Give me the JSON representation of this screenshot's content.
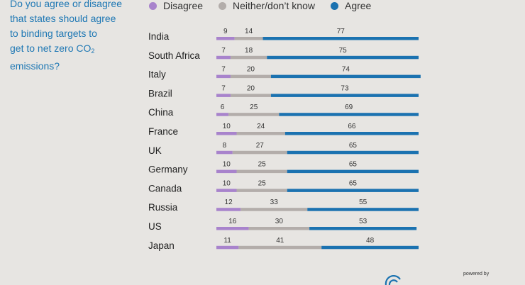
{
  "question": {
    "lines": [
      "Do you agree or disagree",
      "that states should agree",
      "to binding targets to"
    ],
    "line4_text": "get to net zero CO",
    "line4_sub": "2",
    "line5": "emissions?"
  },
  "legend": [
    {
      "label": "Disagree",
      "color": "#a883cc"
    },
    {
      "label": "Neither/don’t know",
      "color": "#b3adaa"
    },
    {
      "label": "Agree",
      "color": "#1b72b0"
    }
  ],
  "chart_data": {
    "type": "bar",
    "orientation": "horizontal",
    "stacked": true,
    "categories": [
      "India",
      "South Africa",
      "Italy",
      "Brazil",
      "China",
      "France",
      "UK",
      "Germany",
      "Canada",
      "Russia",
      "US",
      "Japan"
    ],
    "series": [
      {
        "name": "Disagree",
        "color": "#a883cc",
        "values": [
          9,
          7,
          7,
          7,
          6,
          10,
          8,
          10,
          10,
          12,
          16,
          11
        ]
      },
      {
        "name": "Neither/don’t know",
        "color": "#b3adaa",
        "values": [
          14,
          18,
          20,
          20,
          25,
          24,
          27,
          25,
          25,
          33,
          30,
          41
        ]
      },
      {
        "name": "Agree",
        "color": "#1b72b0",
        "values": [
          77,
          75,
          74,
          73,
          69,
          66,
          65,
          65,
          65,
          55,
          53,
          48
        ]
      }
    ],
    "xlim": [
      0,
      100
    ],
    "legend_position": "top"
  },
  "footer": {
    "powered_by": "powered by"
  }
}
